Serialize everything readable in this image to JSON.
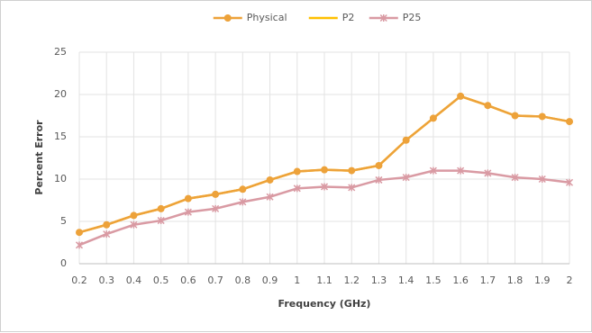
{
  "chart_data": {
    "type": "line",
    "x_label": "Frequency (GHz)",
    "y_label": "Percent Error",
    "x": [
      0.2,
      0.3,
      0.4,
      0.5,
      0.6,
      0.7,
      0.8,
      0.9,
      1,
      1.1,
      1.2,
      1.3,
      1.4,
      1.5,
      1.6,
      1.7,
      1.8,
      1.9,
      2
    ],
    "xlim": [
      0.2,
      2
    ],
    "xticks": [
      0.2,
      0.3,
      0.4,
      0.5,
      0.6,
      0.7,
      0.8,
      0.9,
      1,
      1.1,
      1.2,
      1.3,
      1.4,
      1.5,
      1.6,
      1.7,
      1.8,
      1.9,
      2
    ],
    "ylim": [
      0,
      25
    ],
    "yticks": [
      0,
      5,
      10,
      15,
      20,
      25
    ],
    "grid": true,
    "legend": "top",
    "series": [
      {
        "name": "Physical",
        "color": "#eda23a",
        "marker": "circle",
        "values": [
          3.7,
          4.6,
          5.7,
          6.5,
          7.7,
          8.2,
          8.8,
          9.9,
          10.9,
          11.1,
          11.0,
          11.6,
          14.6,
          17.2,
          19.8,
          18.7,
          17.5,
          17.4,
          16.8
        ]
      },
      {
        "name": "P2",
        "color": "#ffc000",
        "marker": "none",
        "values": [
          3.7,
          4.6,
          5.7,
          6.5,
          7.7,
          8.2,
          8.8,
          9.9,
          10.9,
          11.1,
          11.0,
          11.6,
          14.6,
          17.2,
          19.8,
          18.7,
          17.5,
          17.4,
          16.8
        ]
      },
      {
        "name": "P25",
        "color": "#d99aa3",
        "marker": "x",
        "values": [
          2.2,
          3.5,
          4.6,
          5.1,
          6.1,
          6.5,
          7.3,
          7.9,
          8.9,
          9.1,
          9.0,
          9.9,
          10.2,
          11.0,
          11.0,
          10.7,
          10.2,
          10.0,
          9.6
        ]
      }
    ]
  }
}
